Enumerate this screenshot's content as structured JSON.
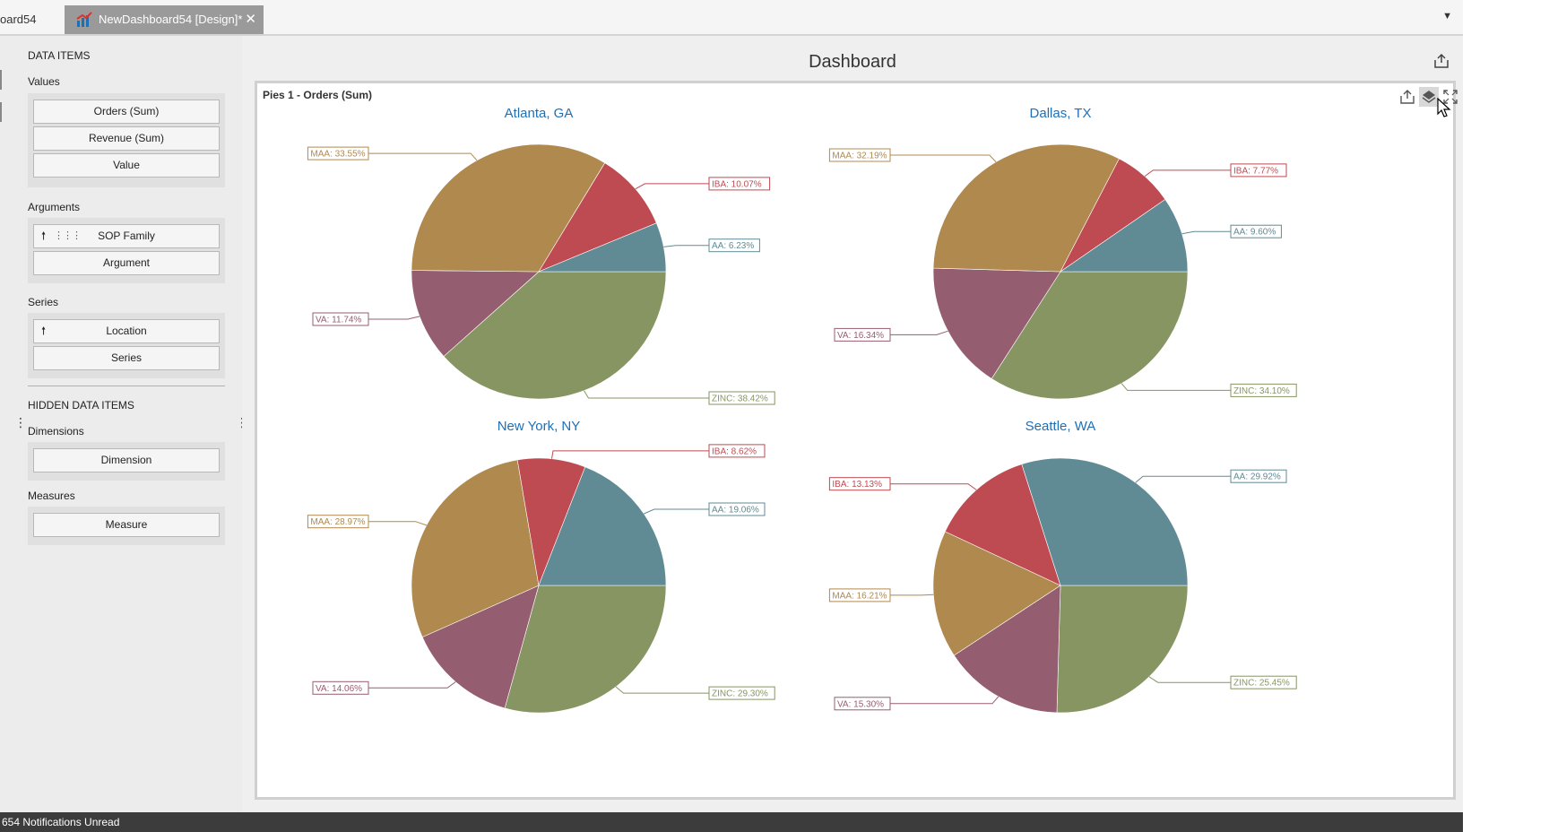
{
  "tabs": {
    "previous_label": "oard54",
    "active_label": "NewDashboard54 [Design]*",
    "close_glyph": "✕"
  },
  "left_panel": {
    "data_items_header": "DATA ITEMS",
    "values_label": "Values",
    "values": [
      "Orders (Sum)",
      "Revenue (Sum)",
      "Value"
    ],
    "arguments_label": "Arguments",
    "arguments": [
      "SOP Family",
      "Argument"
    ],
    "series_label": "Series",
    "series": [
      "Location",
      "Series"
    ],
    "hidden_header": "HIDDEN DATA ITEMS",
    "dimensions_label": "Dimensions",
    "dimensions": [
      "Dimension"
    ],
    "measures_label": "Measures",
    "measures": [
      "Measure"
    ]
  },
  "dashboard": {
    "title": "Dashboard",
    "item_caption": "Pies 1 - Orders (Sum)"
  },
  "icons": [
    "export-icon",
    "layers-icon",
    "fullscreen-icon",
    "chart-icon",
    "close-icon",
    "sort-arrow-icon",
    "grid-icon",
    "cursor-icon"
  ],
  "status": {
    "text": "654 Notifications Unread"
  },
  "colors": {
    "MAA": "#b0894f",
    "IBA": "#be4b51",
    "AA": "#608a94",
    "ZINC": "#879563",
    "VA": "#955e70",
    "pie_title": "#1f6fb5",
    "status_bar": "#3c3c3c"
  },
  "chart_data": [
    {
      "type": "pie",
      "title": "Atlanta, GA",
      "slices": [
        {
          "label": "AA",
          "value": 6.23,
          "display": "AA: 6.23%"
        },
        {
          "label": "IBA",
          "value": 10.07,
          "display": "IBA: 10.07%"
        },
        {
          "label": "MAA",
          "value": 33.55,
          "display": "MAA: 33.55%"
        },
        {
          "label": "VA",
          "value": 11.74,
          "display": "VA: 11.74%"
        },
        {
          "label": "ZINC",
          "value": 38.42,
          "display": "ZINC: 38.42%"
        }
      ]
    },
    {
      "type": "pie",
      "title": "Dallas, TX",
      "slices": [
        {
          "label": "AA",
          "value": 9.6,
          "display": "AA: 9.60%"
        },
        {
          "label": "IBA",
          "value": 7.77,
          "display": "IBA: 7.77%"
        },
        {
          "label": "MAA",
          "value": 32.19,
          "display": "MAA: 32.19%"
        },
        {
          "label": "VA",
          "value": 16.34,
          "display": "VA: 16.34%"
        },
        {
          "label": "ZINC",
          "value": 34.1,
          "display": "ZINC: 34.10%"
        }
      ]
    },
    {
      "type": "pie",
      "title": "New York, NY",
      "slices": [
        {
          "label": "AA",
          "value": 19.06,
          "display": "AA: 19.06%"
        },
        {
          "label": "IBA",
          "value": 8.62,
          "display": "IBA: 8.62%"
        },
        {
          "label": "MAA",
          "value": 28.97,
          "display": "MAA: 28.97%"
        },
        {
          "label": "VA",
          "value": 14.06,
          "display": "VA: 14.06%"
        },
        {
          "label": "ZINC",
          "value": 29.3,
          "display": "ZINC: 29.30%"
        }
      ]
    },
    {
      "type": "pie",
      "title": "Seattle, WA",
      "slices": [
        {
          "label": "AA",
          "value": 29.92,
          "display": "AA: 29.92%"
        },
        {
          "label": "IBA",
          "value": 13.13,
          "display": "IBA: 13.13%"
        },
        {
          "label": "MAA",
          "value": 16.21,
          "display": "MAA: 16.21%"
        },
        {
          "label": "VA",
          "value": 15.3,
          "display": "VA: 15.30%"
        },
        {
          "label": "ZINC",
          "value": 25.45,
          "display": "ZINC: 25.45%"
        }
      ]
    }
  ]
}
